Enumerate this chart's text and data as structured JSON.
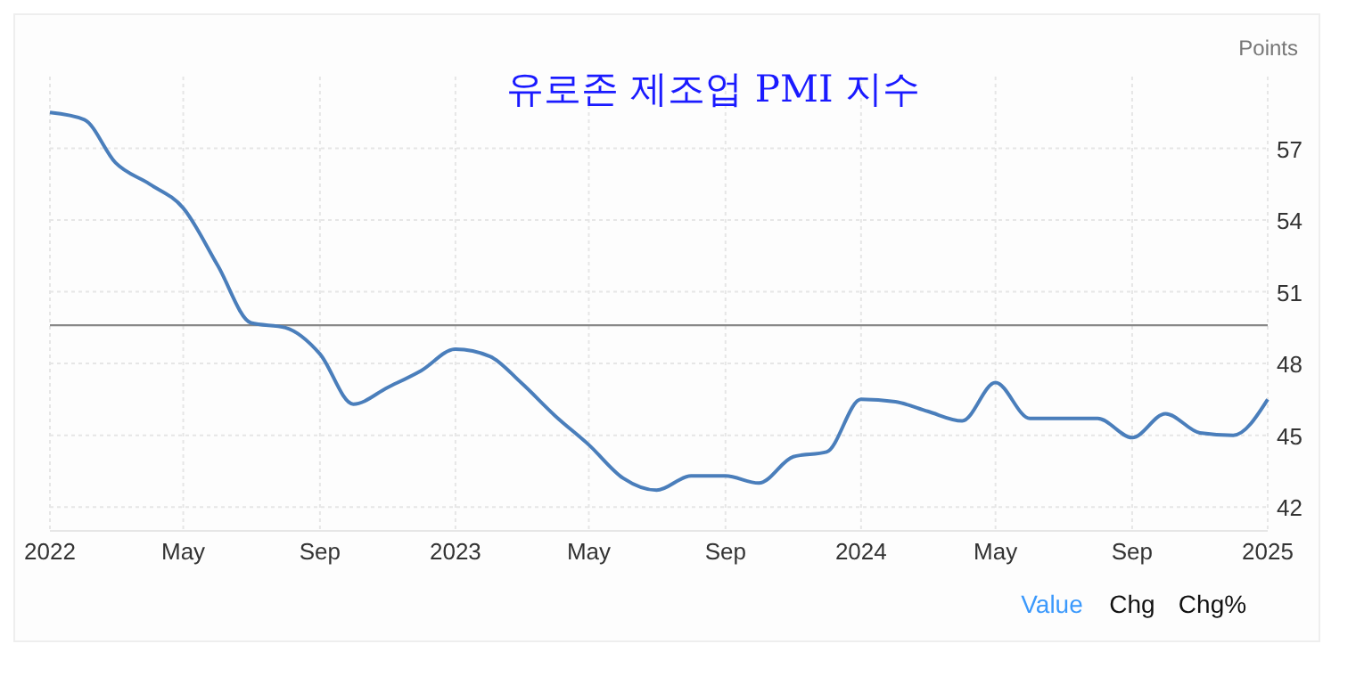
{
  "chart_data": {
    "type": "line",
    "title": "유로존 제조업 PMI 지수",
    "ylabel": "Points",
    "x": [
      "2022-01",
      "2022-02",
      "2022-03",
      "2022-04",
      "2022-05",
      "2022-06",
      "2022-07",
      "2022-08",
      "2022-09",
      "2022-10",
      "2022-11",
      "2022-12",
      "2023-01",
      "2023-02",
      "2023-03",
      "2023-04",
      "2023-05",
      "2023-06",
      "2023-07",
      "2023-08",
      "2023-09",
      "2023-10",
      "2023-11",
      "2023-12",
      "2024-01",
      "2024-02",
      "2024-03",
      "2024-04",
      "2024-05",
      "2024-06",
      "2024-07",
      "2024-08",
      "2024-09",
      "2024-10",
      "2024-11",
      "2024-12",
      "2025-01"
    ],
    "series": [
      {
        "color": "#4a7ebb",
        "values": [
          58.5,
          58.2,
          56.4,
          55.5,
          54.5,
          52.1,
          49.7,
          49.5,
          48.4,
          46.3,
          47.0,
          47.7,
          48.6,
          48.3,
          47.2,
          45.8,
          44.6,
          43.2,
          42.7,
          43.3,
          43.3,
          43.0,
          44.1,
          44.3,
          46.5,
          46.4,
          46.0,
          45.6,
          47.2,
          45.7,
          45.7,
          45.7,
          44.9,
          45.9,
          45.1,
          45.0,
          46.5
        ]
      }
    ],
    "xlim": [
      "2022-01",
      "2025-01"
    ],
    "xticks": [
      {
        "value": "2022-01",
        "label": "2022"
      },
      {
        "value": "2022-05",
        "label": "May"
      },
      {
        "value": "2022-09",
        "label": "Sep"
      },
      {
        "value": "2023-01",
        "label": "2023"
      },
      {
        "value": "2023-05",
        "label": "May"
      },
      {
        "value": "2023-09",
        "label": "Sep"
      },
      {
        "value": "2024-01",
        "label": "2024"
      },
      {
        "value": "2024-05",
        "label": "May"
      },
      {
        "value": "2024-09",
        "label": "Sep"
      },
      {
        "value": "2025-01",
        "label": "2025"
      }
    ],
    "ylim": [
      41,
      60
    ],
    "yticks": [
      42,
      45,
      48,
      51,
      54,
      57
    ],
    "ref_lines": [
      {
        "axis": "y",
        "value": 49.6,
        "color": "#888888"
      }
    ],
    "grid": true,
    "marker": "none",
    "line_style": "solid",
    "annotations": [
      "Value",
      "Chg",
      "Chg%"
    ]
  }
}
